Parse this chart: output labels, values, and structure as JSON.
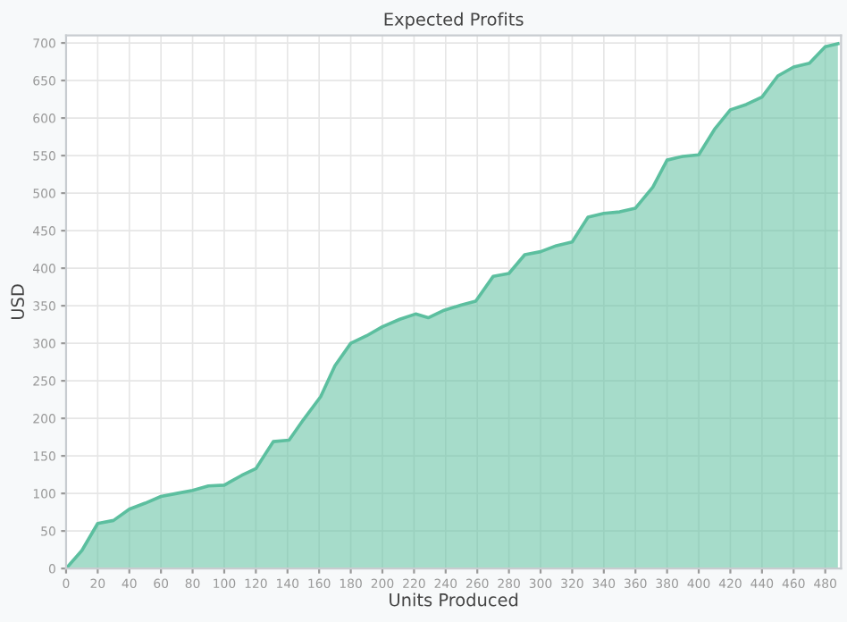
{
  "chart_data": {
    "type": "area",
    "title": "Expected Profits",
    "xlabel": "Units Produced",
    "ylabel": "USD",
    "x": [
      0,
      10,
      20,
      30,
      40,
      50,
      60,
      70,
      80,
      90,
      100,
      111,
      120,
      131,
      141,
      150,
      161,
      170,
      180,
      190,
      200,
      211,
      221,
      229,
      239,
      250,
      259,
      270,
      280,
      290,
      300,
      310,
      320,
      330,
      340,
      350,
      360,
      371,
      380,
      390,
      400,
      410,
      420,
      430,
      440,
      450,
      460,
      470,
      480,
      488
    ],
    "series": [
      {
        "color": "#5cbf9f",
        "values": [
          0,
          24,
          60,
          64,
          79,
          87,
          96,
          100,
          104,
          110,
          111,
          124,
          133,
          169,
          171,
          198,
          229,
          270,
          300,
          310,
          322,
          332,
          339,
          334,
          344,
          351,
          356,
          389,
          393,
          418,
          422,
          430,
          435,
          468,
          473,
          475,
          480,
          508,
          544,
          549,
          551,
          585,
          611,
          618,
          628,
          656,
          668,
          673,
          695,
          699
        ]
      }
    ],
    "xlim": [
      0,
      490
    ],
    "ylim": [
      0,
      710
    ],
    "xticks": [
      0,
      20,
      40,
      60,
      80,
      100,
      120,
      140,
      160,
      180,
      200,
      220,
      240,
      260,
      280,
      300,
      320,
      340,
      360,
      380,
      400,
      420,
      440,
      460,
      480
    ],
    "yticks": [
      0,
      50,
      100,
      150,
      200,
      250,
      300,
      350,
      400,
      450,
      500,
      550,
      600,
      650,
      700
    ],
    "grid": true,
    "legend": false
  }
}
